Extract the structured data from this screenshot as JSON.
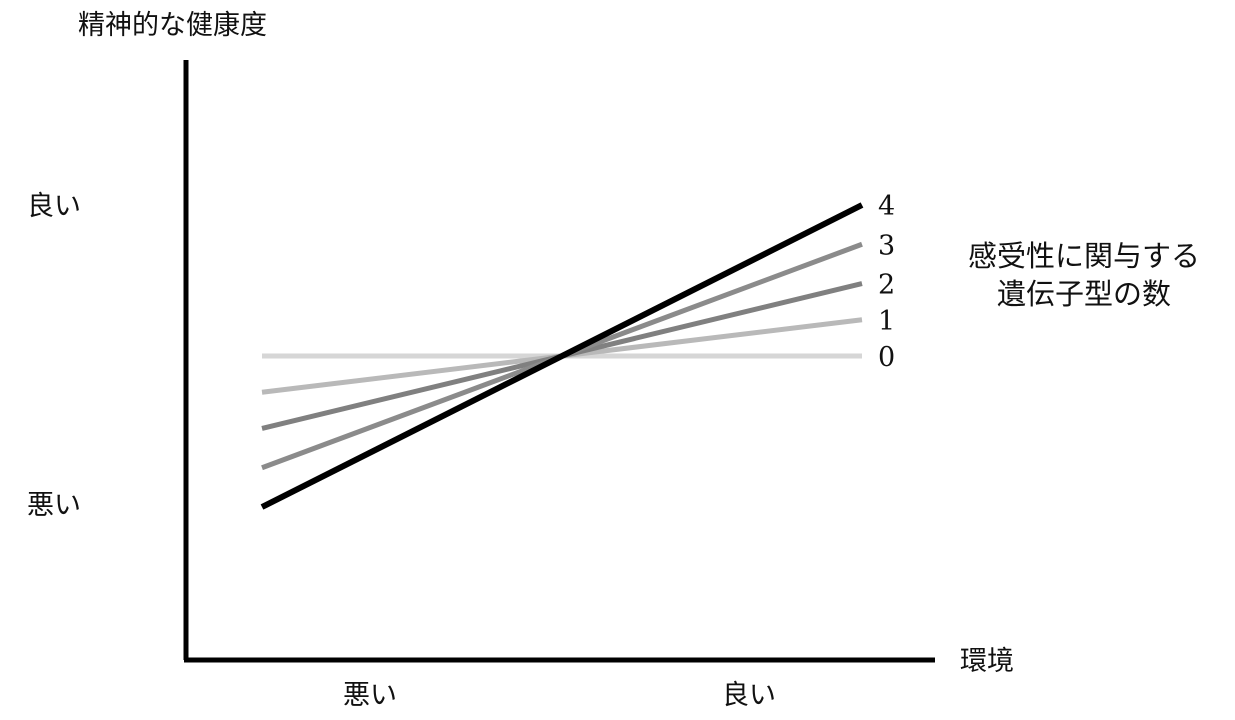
{
  "chart_data": {
    "type": "line",
    "ylabel": "精神的な健康度",
    "xlabel": "環境",
    "x_ticks": [
      "悪い",
      "良い"
    ],
    "y_ticks": [
      "悪い",
      "良い"
    ],
    "legend_title_lines": [
      "感受性に関与する",
      "遺伝子型の数"
    ],
    "series": [
      {
        "name": "0",
        "values": [
          0.0,
          0.0
        ],
        "color": "#d6d6d6"
      },
      {
        "name": "1",
        "values": [
          -0.12,
          0.12
        ],
        "color": "#b9b9b9"
      },
      {
        "name": "2",
        "values": [
          -0.24,
          0.24
        ],
        "color": "#808080"
      },
      {
        "name": "3",
        "values": [
          -0.37,
          0.37
        ],
        "color": "#8b8b8b"
      },
      {
        "name": "4",
        "values": [
          -0.5,
          0.5
        ],
        "color": "#000000"
      }
    ],
    "ylim": [
      -1,
      1
    ],
    "grid": false
  }
}
